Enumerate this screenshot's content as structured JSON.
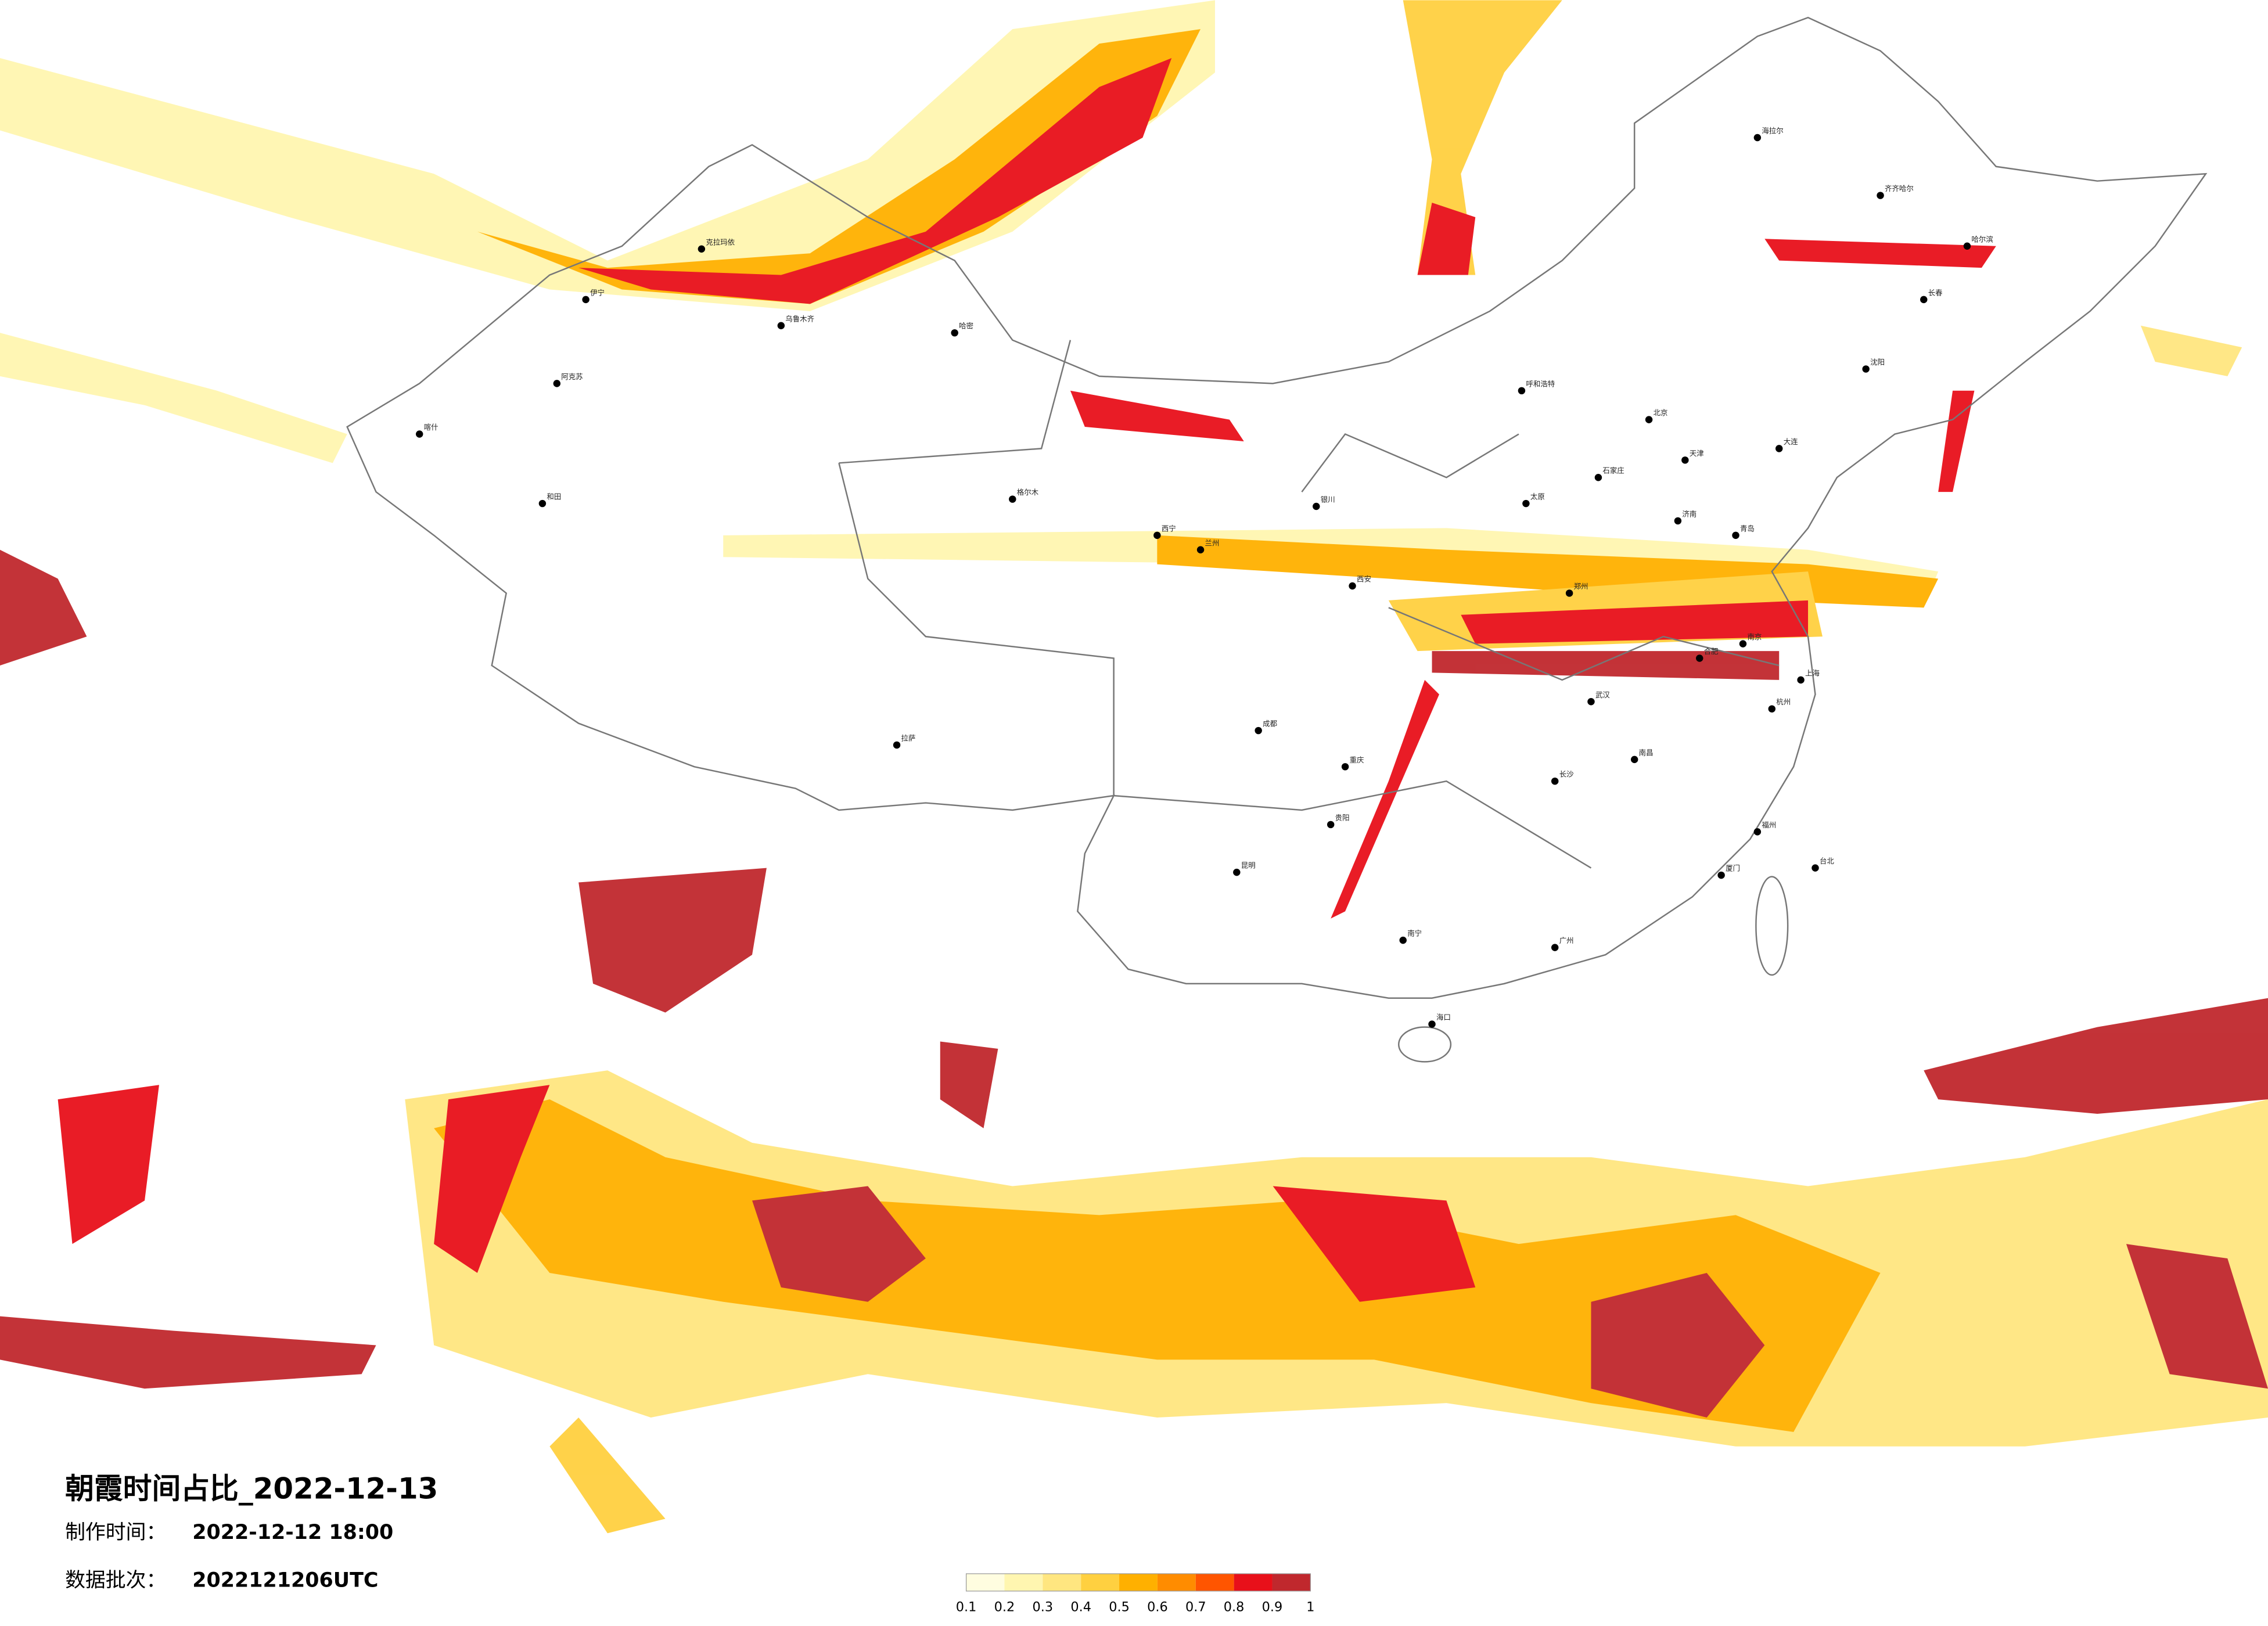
{
  "title": "朝霞时间占比_2022-12-13",
  "production_time": {
    "label": "制作时间：",
    "value": "2022-12-12 18:00"
  },
  "data_batch": {
    "label": "数据批次：",
    "value": "2022121206UTC"
  },
  "legend": {
    "ticks": [
      0.1,
      0.2,
      0.3,
      0.4,
      0.5,
      0.6,
      0.7,
      0.8,
      0.9,
      1
    ],
    "colors": [
      "#fffde0",
      "#fff6b0",
      "#ffe680",
      "#ffd040",
      "#ffb000",
      "#ff8c00",
      "#ff5500",
      "#e8101a",
      "#c0282d"
    ]
  },
  "cities": [
    "哈尔滨",
    "长春",
    "沈阳",
    "北京",
    "天津",
    "石家庄",
    "太原",
    "济南",
    "呼和浩特",
    "银川",
    "兰州",
    "西宁",
    "西安",
    "郑州",
    "武汉",
    "合肥",
    "南京",
    "上海",
    "杭州",
    "南昌",
    "长沙",
    "贵阳",
    "昆明",
    "南宁",
    "广州",
    "福州",
    "台北",
    "海口",
    "成都",
    "重庆",
    "拉萨",
    "乌鲁木齐",
    "哈密",
    "喀什",
    "和田",
    "克拉玛依",
    "伊宁",
    "阿克苏",
    "格尔木",
    "海拉尔",
    "齐齐哈尔",
    "大连",
    "青岛",
    "厦门"
  ]
}
